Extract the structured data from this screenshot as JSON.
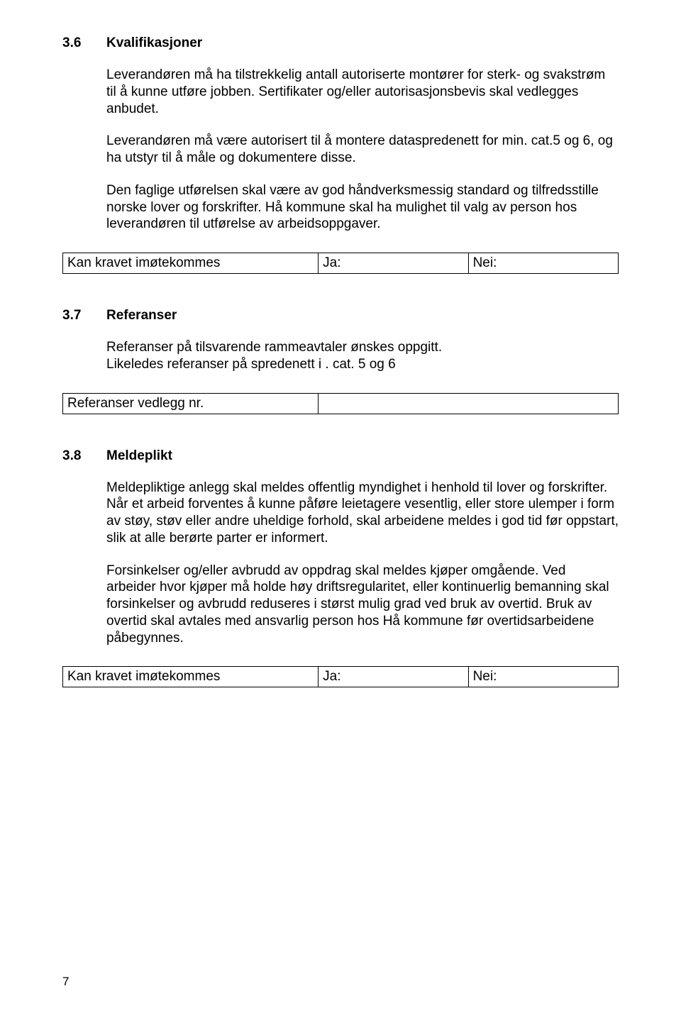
{
  "colors": {
    "text": "#000000",
    "background": "#ffffff",
    "border": "#000000"
  },
  "typography": {
    "body_fontsize_pt": 14,
    "heading_fontsize_pt": 14,
    "font_family": "Arial"
  },
  "page_number": "7",
  "sections": [
    {
      "num": "3.6",
      "title": "Kvalifikasjoner",
      "paragraphs": [
        "Leverandøren må ha tilstrekkelig antall autoriserte montører for sterk- og svakstrøm til å kunne utføre jobben. Sertifikater og/eller autorisasjonsbevis skal vedlegges anbudet.",
        "Leverandøren må være autorisert til å montere dataspredenett for min. cat.5 og 6, og ha utstyr til å måle og dokumentere disse.",
        "Den faglige utførelsen skal være av god håndverksmessig standard og tilfredsstille norske lover og forskrifter. Hå kommune skal ha mulighet til valg av person hos leverandøren til utførelse av arbeidsoppgaver."
      ],
      "req_table": {
        "label": "Kan kravet imøtekommes",
        "ja": "Ja:",
        "nei": "Nei:"
      }
    },
    {
      "num": "3.7",
      "title": "Referanser",
      "paragraphs": [
        "Referanser på tilsvarende rammeavtaler ønskes oppgitt.\nLikeledes referanser på spredenett i . cat. 5 og 6"
      ],
      "ref_table": {
        "label": "Referanser vedlegg nr.",
        "value": ""
      }
    },
    {
      "num": "3.8",
      "title": "Meldeplikt",
      "paragraphs": [
        "Meldepliktige anlegg skal meldes offentlig myndighet i henhold til lover og forskrifter.\nNår et arbeid forventes å kunne påføre leietagere vesentlig, eller store ulemper i form av støy, støv eller andre uheldige forhold, skal arbeidene meldes i god tid før oppstart, slik at alle berørte parter er informert.",
        "Forsinkelser og/eller avbrudd av oppdrag skal meldes kjøper omgående. Ved arbeider hvor kjøper må holde høy driftsregularitet, eller kontinuerlig bemanning skal forsinkelser og avbrudd reduseres i størst mulig grad ved bruk av overtid. Bruk av overtid skal avtales med ansvarlig person hos Hå kommune før overtidsarbeidene påbegynnes."
      ],
      "req_table": {
        "label": "Kan kravet imøtekommes",
        "ja": "Ja:",
        "nei": "Nei:"
      }
    }
  ]
}
